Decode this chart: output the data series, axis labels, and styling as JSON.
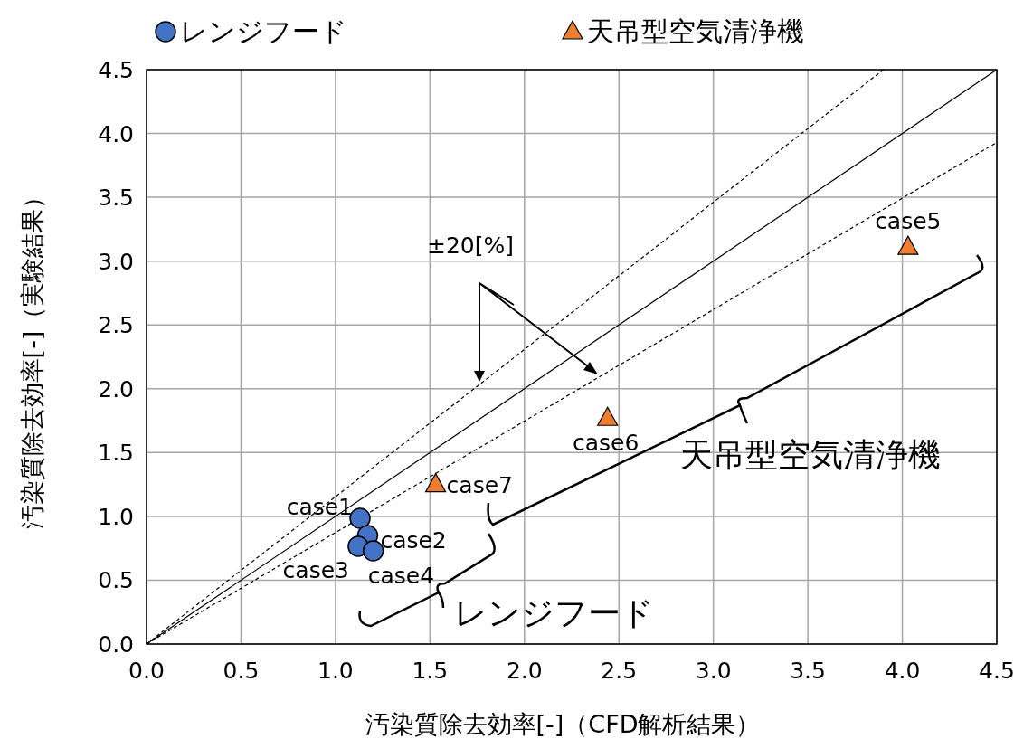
{
  "chart_data": {
    "type": "scatter",
    "xlabel": "汚染質除去効率[-]（CFD解析結果）",
    "ylabel": "汚染質除去効率[-]（実験結果）",
    "xlim": [
      0,
      4.5
    ],
    "ylim": [
      0,
      4.5
    ],
    "xticks": [
      {
        "value": 0,
        "label": "0.0"
      },
      {
        "value": 0.5,
        "label": "0.5"
      },
      {
        "value": 1,
        "label": "1.0"
      },
      {
        "value": 1.5,
        "label": "1.5"
      },
      {
        "value": 2,
        "label": "2.0"
      },
      {
        "value": 2.5,
        "label": "2.5"
      },
      {
        "value": 3,
        "label": "3.0"
      },
      {
        "value": 3.5,
        "label": "3.5"
      },
      {
        "value": 4,
        "label": "4.0"
      },
      {
        "value": 4.5,
        "label": "4.5"
      }
    ],
    "yticks": [
      {
        "value": 0,
        "label": "0.0"
      },
      {
        "value": 0.5,
        "label": "0.5"
      },
      {
        "value": 1,
        "label": "1.0"
      },
      {
        "value": 1.5,
        "label": "1.5"
      },
      {
        "value": 2,
        "label": "2.0"
      },
      {
        "value": 2.5,
        "label": "2.5"
      },
      {
        "value": 3,
        "label": "3.0"
      },
      {
        "value": 3.5,
        "label": "3.5"
      },
      {
        "value": 4,
        "label": "4.0"
      },
      {
        "value": 4.5,
        "label": "4.5"
      }
    ],
    "grid": true,
    "legend": "top",
    "series": [
      {
        "name": "レンジフード",
        "type": "scatter",
        "marker": "circle",
        "color": "#4472c4",
        "x": [
          1.13,
          1.17,
          1.12,
          1.2
        ],
        "values": [
          0.985,
          0.85,
          0.765,
          0.73
        ]
      },
      {
        "name": "天吊型空気清浄機",
        "type": "scatter",
        "marker": "triangle",
        "color": "#ed7d31",
        "x": [
          4.03,
          2.44,
          1.53
        ],
        "values": [
          3.11,
          1.77,
          1.25
        ]
      },
      {
        "type": "line",
        "color": "#000000",
        "line_style": "solid",
        "marker": "none",
        "x": [
          0,
          4.5
        ],
        "values": [
          0,
          4.5
        ]
      },
      {
        "type": "line",
        "color": "#000000",
        "line_style": "dashed",
        "marker": "none",
        "x": [
          0,
          3.9
        ],
        "values": [
          0,
          4.5
        ]
      },
      {
        "type": "line",
        "color": "#000000",
        "line_style": "dashed",
        "marker": "none",
        "x": [
          0,
          4.5
        ],
        "values": [
          0,
          3.93
        ]
      }
    ],
    "annotations": [
      {
        "text": "case1",
        "x": 1.13,
        "y": 0.985
      },
      {
        "text": "case2",
        "x": 1.17,
        "y": 0.85
      },
      {
        "text": "case3",
        "x": 1.12,
        "y": 0.765
      },
      {
        "text": "case4",
        "x": 1.2,
        "y": 0.73
      },
      {
        "text": "case5",
        "x": 4.03,
        "y": 3.11
      },
      {
        "text": "case6",
        "x": 2.44,
        "y": 1.77
      },
      {
        "text": "case7",
        "x": 1.53,
        "y": 1.25
      },
      "±20[%]",
      "天吊型空気清浄機",
      "レンジフード"
    ]
  }
}
